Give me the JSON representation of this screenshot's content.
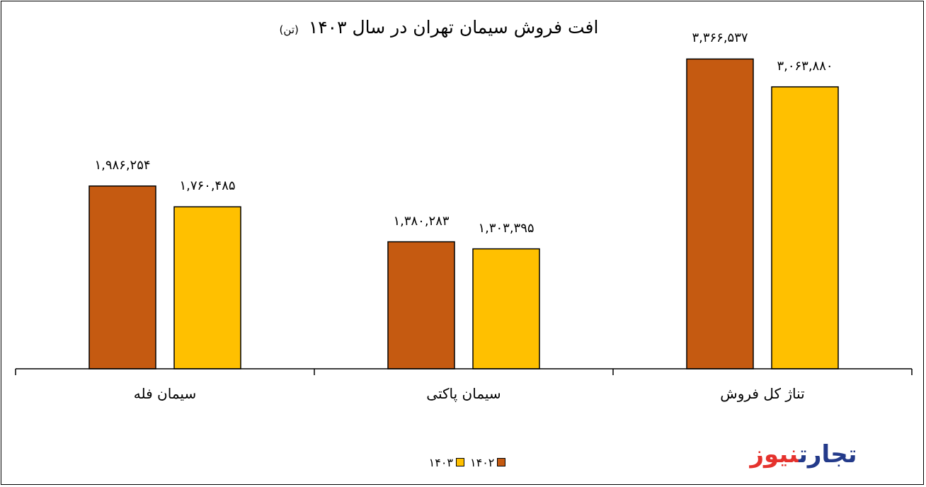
{
  "chart_data": {
    "type": "bar",
    "title": "افت فروش سیمان تهران در سال ۱۴۰۳",
    "unit": "(تن)",
    "categories": [
      "سیمان فله",
      "سیمان پاکتی",
      "تناژ کل فروش"
    ],
    "series": [
      {
        "name": "۱۴۰۲",
        "color": "#c55a11",
        "values": [
          1986254,
          1380283,
          3366537
        ],
        "labels": [
          "۱,۹۸۶,۲۵۴",
          "۱,۳۸۰,۲۸۳",
          "۳,۳۶۶,۵۳۷"
        ]
      },
      {
        "name": "۱۴۰۳",
        "color": "#ffc000",
        "values": [
          1760485,
          1303395,
          3063880
        ],
        "labels": [
          "۱,۷۶۰,۴۸۵",
          "۱,۳۰۳,۳۹۵",
          "۳,۰۶۳,۸۸۰"
        ]
      }
    ],
    "ylim": [
      0,
      3700000
    ],
    "grid": false,
    "legend_position": "bottom"
  },
  "logo": {
    "part1": "تجارت",
    "part2": "نیوز"
  }
}
